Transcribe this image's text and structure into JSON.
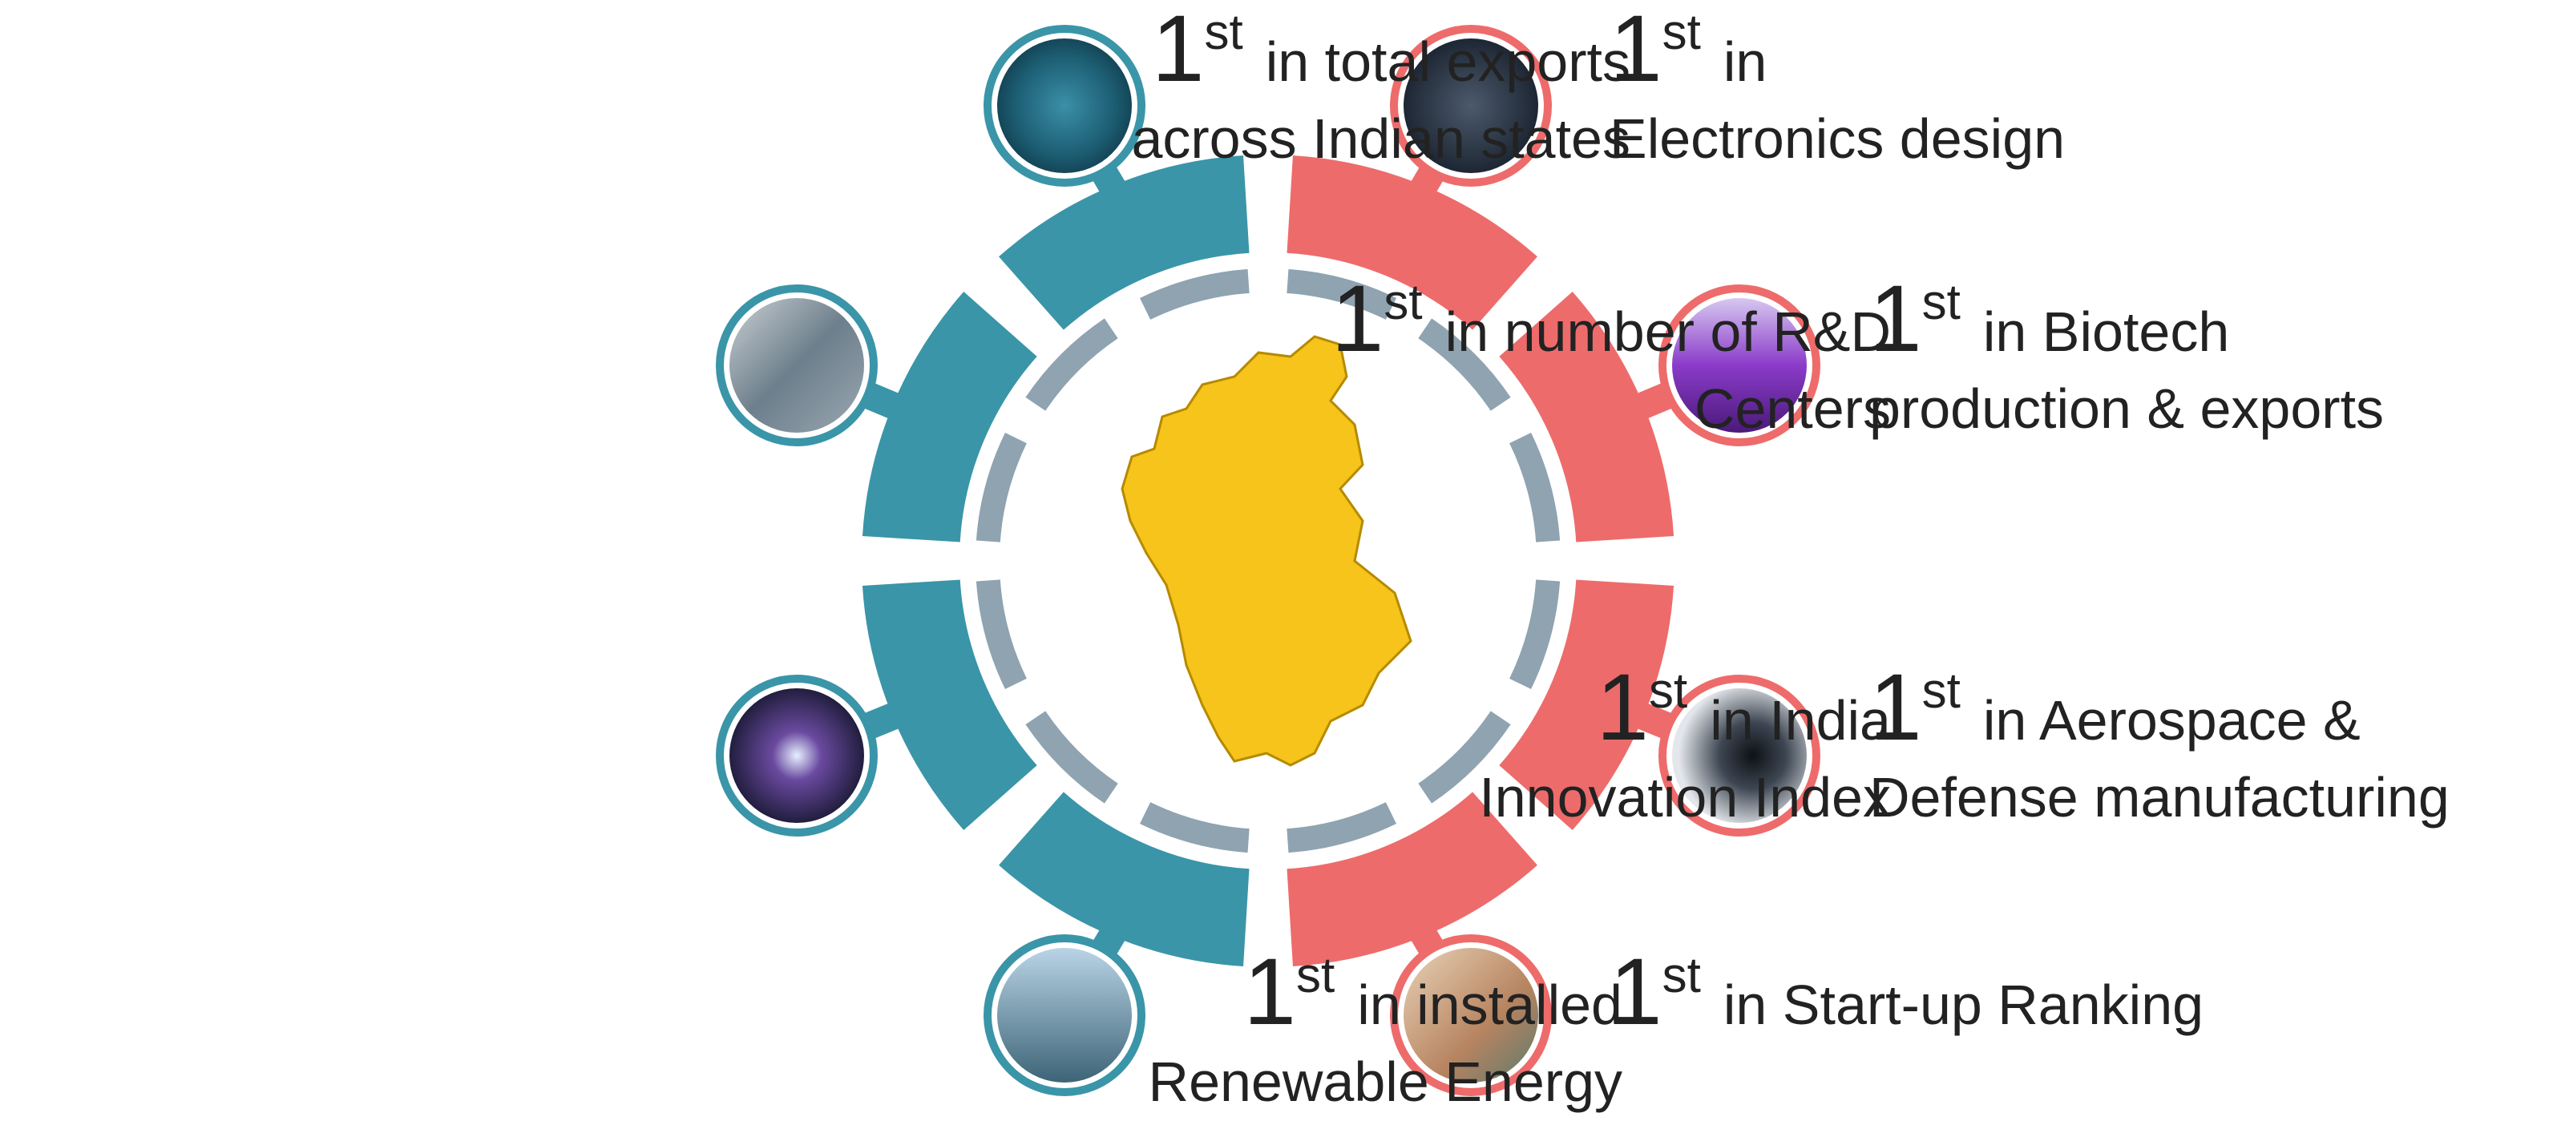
{
  "items": [
    {
      "rank": "1",
      "suffix": "st",
      "line1": "in total exports",
      "line2": "across Indian states"
    },
    {
      "rank": "1",
      "suffix": "st",
      "line1": "in number of R&D",
      "line2": "Centers"
    },
    {
      "rank": "1",
      "suffix": "st",
      "line1": "in India",
      "line2": "Innovation Index"
    },
    {
      "rank": "1",
      "suffix": "st",
      "line1": "in installed",
      "line2": "Renewable Energy"
    },
    {
      "rank": "1",
      "suffix": "st",
      "line1": "in",
      "line2": "Electronics design"
    },
    {
      "rank": "1",
      "suffix": "st",
      "line1": "in Biotech",
      "line2": "production & exports"
    },
    {
      "rank": "1",
      "suffix": "st",
      "line1": "in Aerospace &",
      "line2": "Defense manufacturing"
    },
    {
      "rank": "1",
      "suffix": "st",
      "line1": "in Start-up Ranking",
      "line2": ""
    }
  ]
}
